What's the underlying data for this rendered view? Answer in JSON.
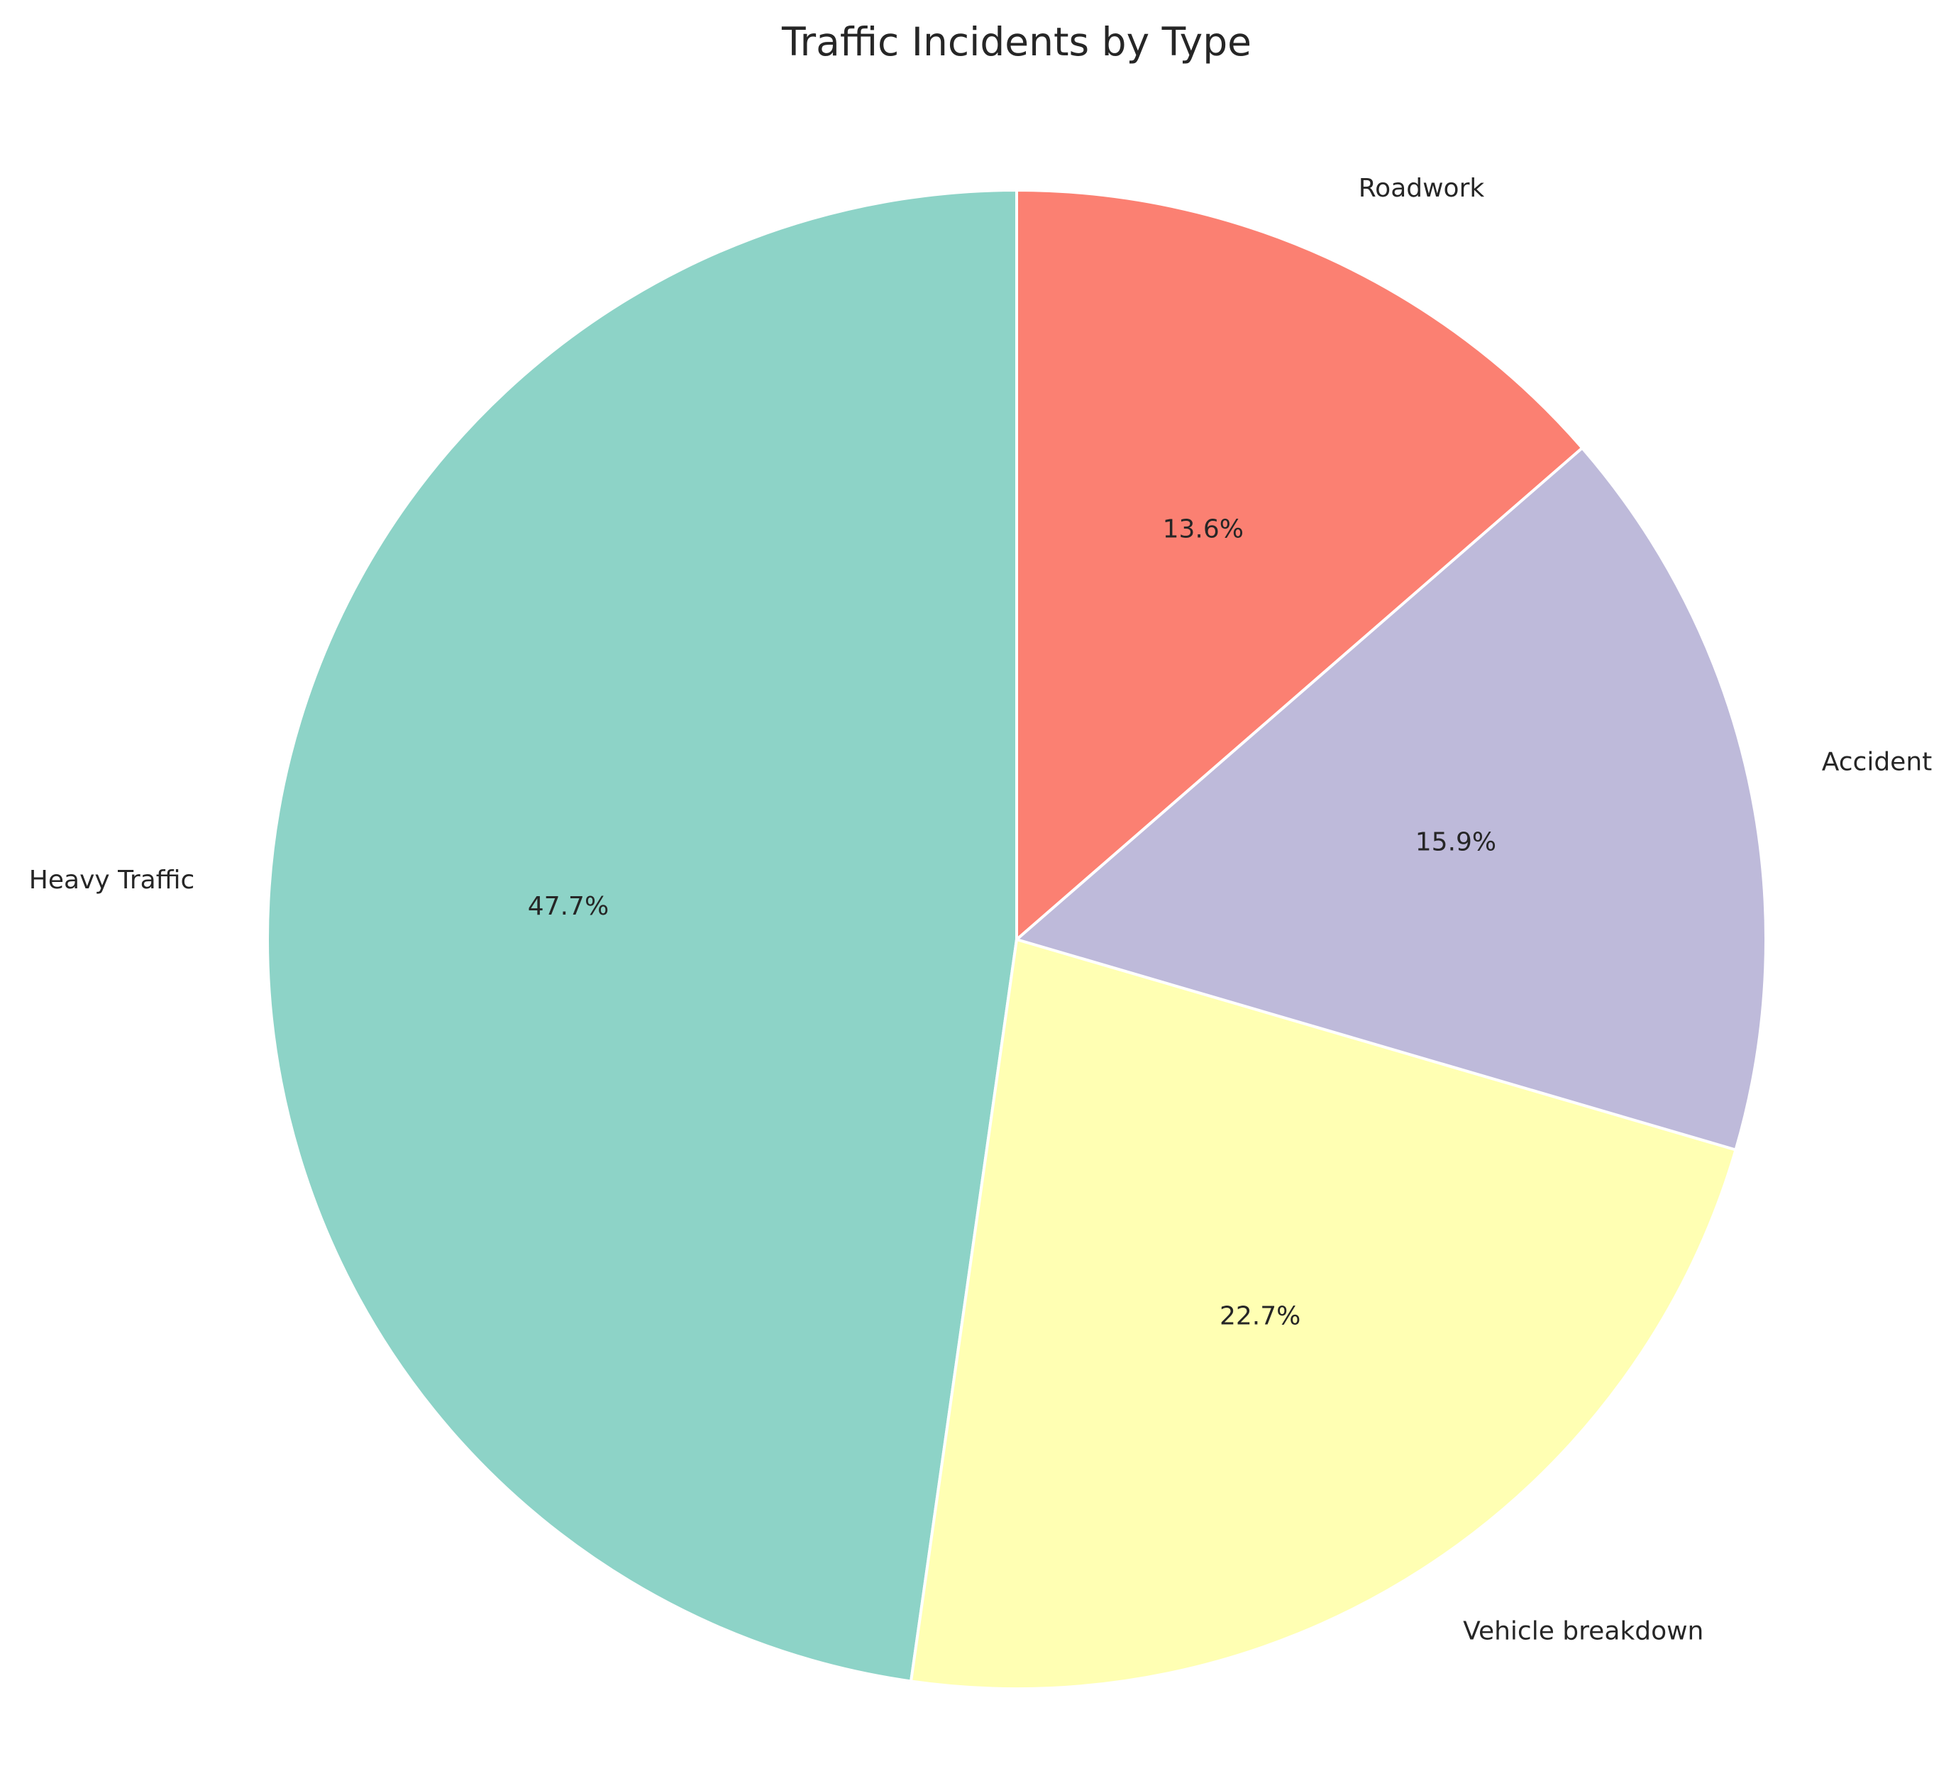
{
  "chart_data": {
    "type": "pie",
    "title": "Traffic Incidents by Type",
    "start_angle_deg": 90,
    "direction": "counterclockwise",
    "edge_color": "#ffffff",
    "slices": [
      {
        "label": "Heavy Traffic",
        "value": 47.7,
        "pct_label": "47.7%",
        "color": "#8dd3c7"
      },
      {
        "label": "Vehicle breakdown",
        "value": 22.7,
        "pct_label": "22.7%",
        "color": "#ffffb3"
      },
      {
        "label": "Accident",
        "value": 15.9,
        "pct_label": "15.9%",
        "color": "#bebada"
      },
      {
        "label": "Roadwork",
        "value": 13.6,
        "pct_label": "13.6%",
        "color": "#fb8072"
      }
    ]
  }
}
